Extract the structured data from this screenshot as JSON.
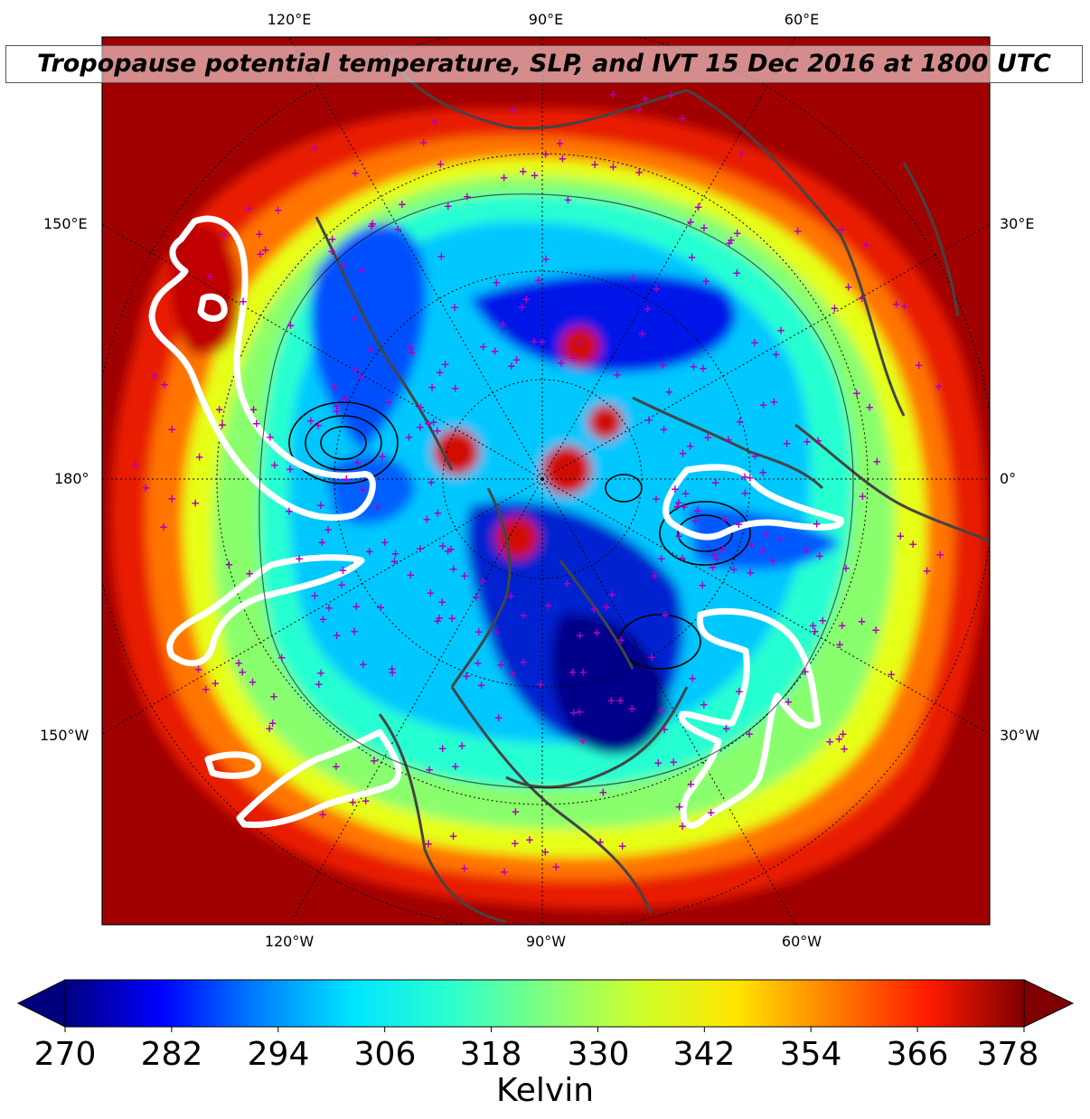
{
  "title": "Tropopause potential temperature, SLP, and IVT 15 Dec 2016 at 1800 UTC",
  "longitude_labels_top": [
    "120°E",
    "90°E",
    "60°E"
  ],
  "longitude_labels_bottom": [
    "120°W",
    "90°W",
    "60°W"
  ],
  "labels_left": [
    "150°E",
    "180°",
    "150°W"
  ],
  "labels_right": [
    "30°E",
    "0°",
    "30°W"
  ],
  "colorbar": {
    "ticks": [
      "270",
      "282",
      "294",
      "306",
      "318",
      "330",
      "342",
      "354",
      "366",
      "378"
    ],
    "label": "Kelvin",
    "min": 270,
    "max": 378,
    "extend": "both",
    "colormap": [
      "#00007f",
      "#0000ff",
      "#007fff",
      "#00e5ff",
      "#2affcf",
      "#7fff7f",
      "#cfff2a",
      "#ffe500",
      "#ff7f00",
      "#ff1a00",
      "#7f0000"
    ]
  },
  "colors": {
    "ivt_contour": "#ffffff",
    "slp_contour": "#000000",
    "coastlines": "#404040",
    "station_markers": "#b000c0"
  }
}
